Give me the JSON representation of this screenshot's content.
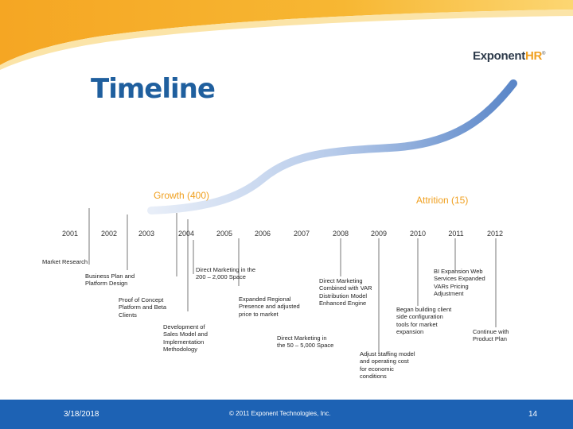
{
  "logo": {
    "main": "Exponent",
    "accent": "HR",
    "mark": "®"
  },
  "title": "Timeline",
  "growth_label": "Growth (400)",
  "attrition_label": "Attrition (15)",
  "years": [
    "2001",
    "2002",
    "2003",
    "2004",
    "2005",
    "2006",
    "2007",
    "2008",
    "2009",
    "2010",
    "2011",
    "2012"
  ],
  "events": {
    "market_research": "Market Research",
    "business_plan": "Business Plan and Platform Design",
    "proof_of_concept": "Proof of Concept Platform and Beta Clients",
    "development": "Development of Sales Model and Implementation Methodology",
    "direct_marketing_200": "Direct Marketing in the 200 – 2,000 Space",
    "expanded_regional": "Expanded Regional Presence and adjusted price to market",
    "direct_marketing_50": "Direct Marketing in the 50 – 5,000 Space",
    "direct_marketing_var": "Direct Marketing Combined with VAR Distribution Model Enhanced Engine",
    "adjust_staffing": "Adjust staffing model and operating cost for economic conditions",
    "began_building": "Began building client side configuration tools for market expansion",
    "bi_expansion": "BI Expansion Web Services Expanded VARs Pricing Adjustment",
    "continue_product": "Continue with Product Plan"
  },
  "footer": {
    "date": "3/18/2018",
    "copyright": "© 2011 Exponent Technologies, Inc.",
    "page": "14"
  },
  "colors": {
    "title": "#1f5f9e",
    "accent": "#f0a020",
    "footer": "#1d62b4"
  }
}
